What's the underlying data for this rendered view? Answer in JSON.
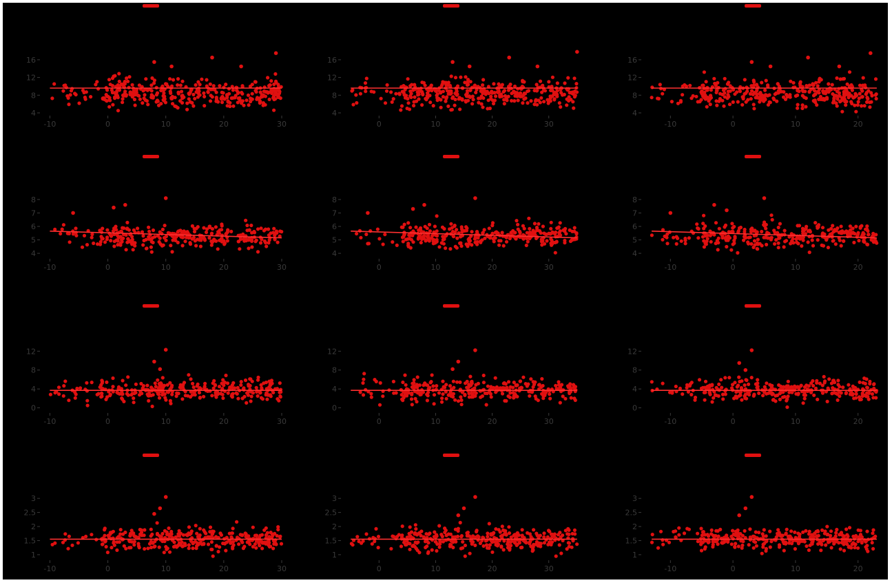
{
  "figure": {
    "background": "#000000",
    "frame_color": "#ffffff",
    "point_color": "#e01010",
    "line_color": "#ff3030",
    "tick_color": "#3a3a3a"
  },
  "chart_data": [
    {
      "type": "scatter",
      "row": 0,
      "col": 0,
      "xticks": [
        -10,
        0,
        10,
        20,
        30
      ],
      "yticks": [
        4,
        8,
        12,
        16
      ],
      "xlim": [
        -11,
        30
      ],
      "ylim": [
        4,
        18
      ],
      "series_x_range": [
        -10,
        30
      ],
      "y_center": 8.5,
      "y_spread": 1.6,
      "trend": [
        [
          -10,
          9.6
        ],
        [
          30,
          9.6
        ]
      ],
      "outliers": [
        [
          8,
          15.5
        ],
        [
          18,
          16.5
        ],
        [
          29,
          17.5
        ],
        [
          11,
          14.5
        ],
        [
          23,
          14.5
        ]
      ],
      "n_points": 360,
      "title": ""
    },
    {
      "type": "scatter",
      "row": 0,
      "col": 1,
      "xticks": [
        0,
        10,
        20,
        30
      ],
      "yticks": [
        4,
        8,
        12,
        16
      ],
      "xlim": [
        -6,
        36
      ],
      "ylim": [
        4,
        18
      ],
      "series_x_range": [
        -5,
        35
      ],
      "y_center": 8.5,
      "y_spread": 1.6,
      "trend": [
        [
          -5,
          9.6
        ],
        [
          35,
          9.6
        ]
      ],
      "outliers": [
        [
          13,
          15.5
        ],
        [
          23,
          16.5
        ],
        [
          35,
          17.8
        ],
        [
          16,
          14.5
        ],
        [
          28,
          14.5
        ]
      ],
      "n_points": 360,
      "title": ""
    },
    {
      "type": "scatter",
      "row": 0,
      "col": 2,
      "xticks": [
        -10,
        0,
        10,
        20
      ],
      "yticks": [
        4,
        8,
        12,
        16
      ],
      "xlim": [
        -14,
        24
      ],
      "ylim": [
        4,
        18
      ],
      "series_x_range": [
        -13,
        23
      ],
      "y_center": 8.5,
      "y_spread": 1.6,
      "trend": [
        [
          -13,
          9.6
        ],
        [
          23,
          9.6
        ]
      ],
      "outliers": [
        [
          3,
          15.5
        ],
        [
          12,
          16.5
        ],
        [
          22,
          17.5
        ],
        [
          6,
          14.5
        ],
        [
          17,
          14.5
        ]
      ],
      "n_points": 360,
      "title": ""
    },
    {
      "type": "scatter",
      "row": 1,
      "col": 0,
      "xticks": [
        -10,
        0,
        10,
        20,
        30
      ],
      "yticks": [
        4,
        5,
        6,
        7,
        8
      ],
      "xlim": [
        -11,
        30
      ],
      "ylim": [
        3.8,
        8.3
      ],
      "series_x_range": [
        -10,
        30
      ],
      "y_center": 5.3,
      "y_spread": 0.45,
      "trend": [
        [
          -10,
          5.65
        ],
        [
          30,
          5.15
        ]
      ],
      "outliers": [
        [
          10,
          8.1
        ],
        [
          1,
          7.4
        ],
        [
          3,
          7.6
        ],
        [
          -6,
          7.0
        ]
      ],
      "n_points": 300,
      "title": ""
    },
    {
      "type": "scatter",
      "row": 1,
      "col": 1,
      "xticks": [
        0,
        10,
        20,
        30
      ],
      "yticks": [
        4,
        5,
        6,
        7,
        8
      ],
      "xlim": [
        -6,
        36
      ],
      "ylim": [
        3.8,
        8.3
      ],
      "series_x_range": [
        -5,
        35
      ],
      "y_center": 5.3,
      "y_spread": 0.45,
      "trend": [
        [
          -5,
          5.65
        ],
        [
          35,
          5.15
        ]
      ],
      "outliers": [
        [
          17,
          8.1
        ],
        [
          8,
          7.6
        ],
        [
          6,
          7.3
        ],
        [
          -2,
          7.0
        ]
      ],
      "n_points": 300,
      "title": ""
    },
    {
      "type": "scatter",
      "row": 1,
      "col": 2,
      "xticks": [
        -10,
        0,
        10,
        20
      ],
      "yticks": [
        4,
        5,
        6,
        7,
        8
      ],
      "xlim": [
        -14,
        24
      ],
      "ylim": [
        3.8,
        8.3
      ],
      "series_x_range": [
        -13,
        23
      ],
      "y_center": 5.3,
      "y_spread": 0.45,
      "trend": [
        [
          -13,
          5.65
        ],
        [
          23,
          5.15
        ]
      ],
      "outliers": [
        [
          5,
          8.1
        ],
        [
          -3,
          7.6
        ],
        [
          -1,
          7.2
        ],
        [
          -10,
          7.0
        ]
      ],
      "n_points": 300,
      "title": ""
    },
    {
      "type": "scatter",
      "row": 2,
      "col": 0,
      "xticks": [
        -10,
        0,
        10,
        20,
        30
      ],
      "yticks": [
        0,
        4,
        8,
        12
      ],
      "xlim": [
        -11,
        30
      ],
      "ylim": [
        -0.5,
        13.5
      ],
      "series_x_range": [
        -10,
        30
      ],
      "y_center": 3.7,
      "y_spread": 1.2,
      "trend": [
        [
          -10,
          3.7
        ],
        [
          30,
          3.7
        ]
      ],
      "outliers": [
        [
          10,
          12.3
        ],
        [
          8,
          9.8
        ],
        [
          9,
          8.2
        ]
      ],
      "n_points": 300,
      "title": ""
    },
    {
      "type": "scatter",
      "row": 2,
      "col": 1,
      "xticks": [
        0,
        10,
        20,
        30
      ],
      "yticks": [
        0,
        4,
        8,
        12
      ],
      "xlim": [
        -6,
        36
      ],
      "ylim": [
        -0.5,
        13.5
      ],
      "series_x_range": [
        -5,
        35
      ],
      "y_center": 3.7,
      "y_spread": 1.2,
      "trend": [
        [
          -5,
          3.7
        ],
        [
          35,
          3.7
        ]
      ],
      "outliers": [
        [
          17,
          12.2
        ],
        [
          14,
          9.8
        ],
        [
          13,
          8.2
        ]
      ],
      "n_points": 300,
      "title": ""
    },
    {
      "type": "scatter",
      "row": 2,
      "col": 2,
      "xticks": [
        -10,
        0,
        10,
        20
      ],
      "yticks": [
        0,
        4,
        8,
        12
      ],
      "xlim": [
        -14,
        24
      ],
      "ylim": [
        -0.5,
        13.5
      ],
      "series_x_range": [
        -13,
        23
      ],
      "y_center": 3.7,
      "y_spread": 1.2,
      "trend": [
        [
          -13,
          3.7
        ],
        [
          23,
          3.7
        ]
      ],
      "outliers": [
        [
          3,
          12.2
        ],
        [
          1,
          9.5
        ],
        [
          2,
          8.0
        ]
      ],
      "n_points": 300,
      "title": ""
    },
    {
      "type": "scatter",
      "row": 3,
      "col": 0,
      "xticks": [
        -10,
        0,
        10,
        20,
        30
      ],
      "yticks": [
        1.0,
        1.5,
        2.0,
        2.5,
        3.0
      ],
      "xlim": [
        -11,
        30
      ],
      "ylim": [
        0.9,
        3.2
      ],
      "series_x_range": [
        -10,
        30
      ],
      "y_center": 1.55,
      "y_spread": 0.2,
      "trend": [
        [
          -10,
          1.55
        ],
        [
          30,
          1.55
        ]
      ],
      "outliers": [
        [
          10,
          3.05
        ],
        [
          9,
          2.65
        ],
        [
          8,
          2.45
        ]
      ],
      "n_points": 320,
      "title": ""
    },
    {
      "type": "scatter",
      "row": 3,
      "col": 1,
      "xticks": [
        0,
        10,
        20,
        30
      ],
      "yticks": [
        1.0,
        1.5,
        2.0,
        2.5,
        3.0
      ],
      "xlim": [
        -6,
        36
      ],
      "ylim": [
        0.9,
        3.2
      ],
      "series_x_range": [
        -5,
        35
      ],
      "y_center": 1.55,
      "y_spread": 0.2,
      "trend": [
        [
          -5,
          1.55
        ],
        [
          35,
          1.55
        ]
      ],
      "outliers": [
        [
          17,
          3.05
        ],
        [
          15,
          2.65
        ],
        [
          14,
          2.4
        ]
      ],
      "n_points": 320,
      "title": ""
    },
    {
      "type": "scatter",
      "row": 3,
      "col": 2,
      "xticks": [
        -10,
        0,
        10,
        20
      ],
      "yticks": [
        1.0,
        1.5,
        2.0,
        2.5,
        3.0
      ],
      "xlim": [
        -14,
        24
      ],
      "ylim": [
        0.9,
        3.2
      ],
      "series_x_range": [
        -13,
        23
      ],
      "y_center": 1.55,
      "y_spread": 0.2,
      "trend": [
        [
          -13,
          1.55
        ],
        [
          23,
          1.55
        ]
      ],
      "outliers": [
        [
          3,
          3.05
        ],
        [
          2,
          2.65
        ],
        [
          1,
          2.4
        ]
      ],
      "n_points": 320,
      "title": ""
    }
  ]
}
